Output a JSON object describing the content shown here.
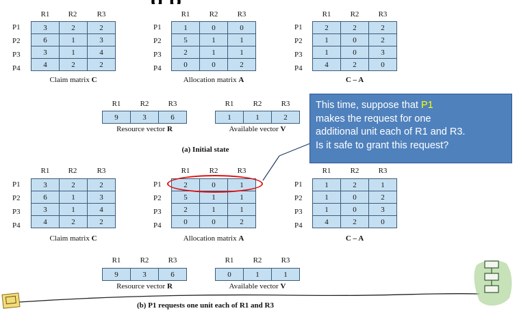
{
  "title_fragment": "g   p",
  "cols": [
    "R1",
    "R2",
    "R3"
  ],
  "rows": [
    "P1",
    "P2",
    "P3",
    "P4"
  ],
  "initial": {
    "claim": [
      [
        "3",
        "2",
        "2"
      ],
      [
        "6",
        "1",
        "3"
      ],
      [
        "3",
        "1",
        "4"
      ],
      [
        "4",
        "2",
        "2"
      ]
    ],
    "allocation": [
      [
        "1",
        "0",
        "0"
      ],
      [
        "5",
        "1",
        "1"
      ],
      [
        "2",
        "1",
        "1"
      ],
      [
        "0",
        "0",
        "2"
      ]
    ],
    "c_minus_a": [
      [
        "2",
        "2",
        "2"
      ],
      [
        "1",
        "0",
        "2"
      ],
      [
        "1",
        "0",
        "3"
      ],
      [
        "4",
        "2",
        "0"
      ]
    ],
    "resource": [
      "9",
      "3",
      "6"
    ],
    "available": [
      "1",
      "1",
      "2"
    ]
  },
  "requested": {
    "claim": [
      [
        "3",
        "2",
        "2"
      ],
      [
        "6",
        "1",
        "3"
      ],
      [
        "3",
        "1",
        "4"
      ],
      [
        "4",
        "2",
        "2"
      ]
    ],
    "allocation": [
      [
        "2",
        "0",
        "1"
      ],
      [
        "5",
        "1",
        "1"
      ],
      [
        "2",
        "1",
        "1"
      ],
      [
        "0",
        "0",
        "2"
      ]
    ],
    "c_minus_a": [
      [
        "1",
        "2",
        "1"
      ],
      [
        "1",
        "0",
        "2"
      ],
      [
        "1",
        "0",
        "3"
      ],
      [
        "4",
        "2",
        "0"
      ]
    ],
    "resource": [
      "9",
      "3",
      "6"
    ],
    "available": [
      "0",
      "1",
      "1"
    ]
  },
  "captions": {
    "claim_prefix": "Claim matrix ",
    "claim_var": "C",
    "alloc_prefix": "Allocation matrix ",
    "alloc_var": "A",
    "cma": "C – A",
    "resource_prefix": "Resource vector ",
    "resource_var": "R",
    "available_prefix": "Available vector ",
    "available_var": "V"
  },
  "section_a": "(a) Initial state",
  "section_b": "(b) P1 requests one unit each of R1 and R3",
  "callout": {
    "line1_pre": "This time,  suppose that ",
    "line1_hl": "P1",
    "line2": "makes the request for one",
    "line3": "additional unit each of R1 and R3.",
    "line4": "Is it safe to grant this request?"
  },
  "colors": {
    "cell_fill": "#c5dff2",
    "callout_fill": "#4f81bd",
    "highlight": "#ffff00",
    "ellipse": "#dd1111"
  }
}
